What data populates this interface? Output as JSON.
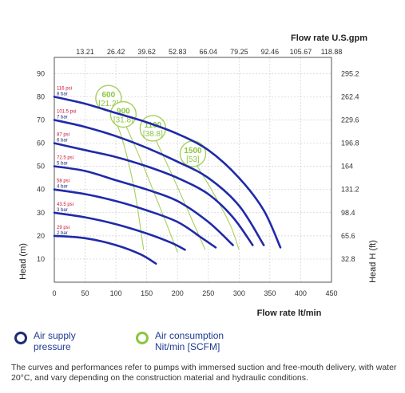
{
  "chart_data": {
    "type": "line",
    "x_top_title": "Flow rate U.S.gpm",
    "x_top_ticks": [
      "13.21",
      "26.42",
      "39.62",
      "52.83",
      "66.04",
      "79.25",
      "92.46",
      "105.67",
      "118.88"
    ],
    "xlabel": "Flow rate lt/min",
    "x_ticks": [
      "0",
      "50",
      "100",
      "150",
      "200",
      "250",
      "300",
      "350",
      "400",
      "450"
    ],
    "xlim": [
      0,
      450
    ],
    "ylabel_left": "Head (m)",
    "y_left_ticks": [
      "10",
      "20",
      "30",
      "40",
      "50",
      "60",
      "70",
      "80",
      "90"
    ],
    "ylim": [
      0,
      97
    ],
    "ylabel_right": "Head H (ft)",
    "y_right_ticks": [
      "32.8",
      "65.6",
      "98.4",
      "131.2",
      "164",
      "196.8",
      "229.6",
      "262.4",
      "295.2"
    ],
    "grid": true,
    "series": [
      {
        "psi": "116 psi",
        "bar": "8 bar",
        "points": [
          [
            0,
            80
          ],
          [
            50,
            77
          ],
          [
            100,
            73
          ],
          [
            150,
            69
          ],
          [
            200,
            64
          ],
          [
            250,
            57
          ],
          [
            300,
            45
          ],
          [
            340,
            31
          ],
          [
            367,
            15
          ]
        ]
      },
      {
        "psi": "101.5 psi",
        "bar": "7 bar",
        "points": [
          [
            0,
            70
          ],
          [
            50,
            67
          ],
          [
            100,
            63
          ],
          [
            150,
            58
          ],
          [
            200,
            52
          ],
          [
            250,
            45
          ],
          [
            300,
            33
          ],
          [
            340,
            16
          ]
        ]
      },
      {
        "psi": "87 psi",
        "bar": "6 bar",
        "points": [
          [
            0,
            60
          ],
          [
            50,
            57
          ],
          [
            100,
            54
          ],
          [
            150,
            50
          ],
          [
            200,
            45
          ],
          [
            250,
            38
          ],
          [
            290,
            28
          ],
          [
            322,
            16
          ]
        ]
      },
      {
        "psi": "72.5 psi",
        "bar": "5 bar",
        "points": [
          [
            0,
            50
          ],
          [
            50,
            48
          ],
          [
            100,
            44
          ],
          [
            150,
            40
          ],
          [
            200,
            35
          ],
          [
            250,
            26
          ],
          [
            290,
            16
          ]
        ]
      },
      {
        "psi": "58 psi",
        "bar": "4 bar",
        "points": [
          [
            0,
            40
          ],
          [
            50,
            38
          ],
          [
            100,
            35
          ],
          [
            150,
            31
          ],
          [
            200,
            26
          ],
          [
            240,
            19
          ],
          [
            262,
            15
          ]
        ]
      },
      {
        "psi": "43.5 psi",
        "bar": "3 bar",
        "points": [
          [
            0,
            30
          ],
          [
            50,
            28
          ],
          [
            100,
            25
          ],
          [
            150,
            21
          ],
          [
            190,
            17
          ],
          [
            212,
            14
          ]
        ]
      },
      {
        "psi": "29 psi",
        "bar": "2 bar",
        "points": [
          [
            0,
            20
          ],
          [
            50,
            19
          ],
          [
            100,
            16
          ],
          [
            140,
            12
          ],
          [
            165,
            8
          ]
        ]
      }
    ],
    "air_consumption": [
      {
        "value": "600",
        "scfm": "[21.2]",
        "points": [
          [
            88,
            77
          ],
          [
            110,
            62
          ],
          [
            130,
            40
          ],
          [
            145,
            14
          ]
        ]
      },
      {
        "value": "900",
        "scfm": "[31.8]",
        "points": [
          [
            112,
            70
          ],
          [
            140,
            53
          ],
          [
            175,
            30
          ],
          [
            200,
            13
          ]
        ]
      },
      {
        "value": "1100",
        "scfm": "[38.8]",
        "points": [
          [
            160,
            64
          ],
          [
            190,
            47
          ],
          [
            230,
            23
          ],
          [
            245,
            14
          ]
        ]
      },
      {
        "value": "1500",
        "scfm": "[53]",
        "points": [
          [
            225,
            53
          ],
          [
            255,
            40
          ],
          [
            285,
            25
          ],
          [
            300,
            14
          ]
        ]
      }
    ],
    "colors": {
      "pressure": "#1f2aa8",
      "air": "#a6d05a",
      "psi_text": "#c8102e"
    }
  },
  "legend": {
    "pressure_line1": "Air supply",
    "pressure_line2": "pressure",
    "air_line1": "Air consumption",
    "air_line2": "Nit/min [SCFM]"
  },
  "note": "The curves and performances refer to pumps with immersed suction and free-mouth delivery, with water 20°C, and vary depending on the construction material and hydraulic conditions."
}
